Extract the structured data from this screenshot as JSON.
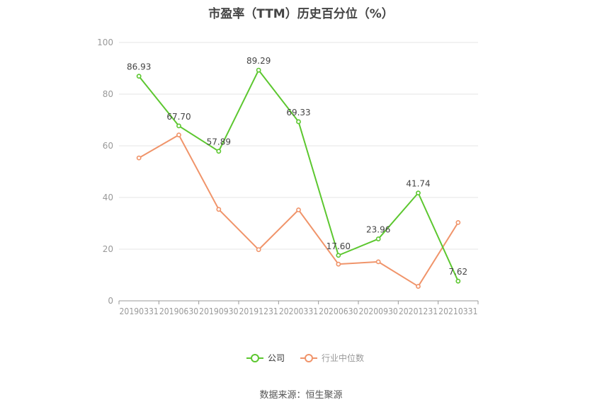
{
  "source_text": "数据来源：恒生聚源",
  "chart_data": {
    "type": "line",
    "title": "市盈率（TTM）历史百分位（%）",
    "categories": [
      "20190331",
      "20190630",
      "20190930",
      "20191231",
      "20200331",
      "20200630",
      "20200930",
      "20201231",
      "20210331"
    ],
    "ylim": [
      0,
      100
    ],
    "yticks": [
      0,
      20,
      40,
      60,
      80,
      100
    ],
    "grid": true,
    "legend_position": "bottom",
    "series": [
      {
        "name": "公司",
        "color": "#5cc72f",
        "values": [
          86.93,
          67.7,
          57.89,
          89.29,
          69.33,
          17.6,
          23.96,
          41.74,
          7.62
        ],
        "labels": [
          "86.93",
          "67.70",
          "57.89",
          "89.29",
          "69.33",
          "17.60",
          "23.96",
          "41.74",
          "7.62"
        ]
      },
      {
        "name": "行业中位数",
        "color": "#f0946a",
        "values": [
          55.3,
          64.2,
          35.4,
          19.8,
          35.2,
          14.2,
          15.1,
          5.6,
          30.3
        ]
      }
    ]
  }
}
